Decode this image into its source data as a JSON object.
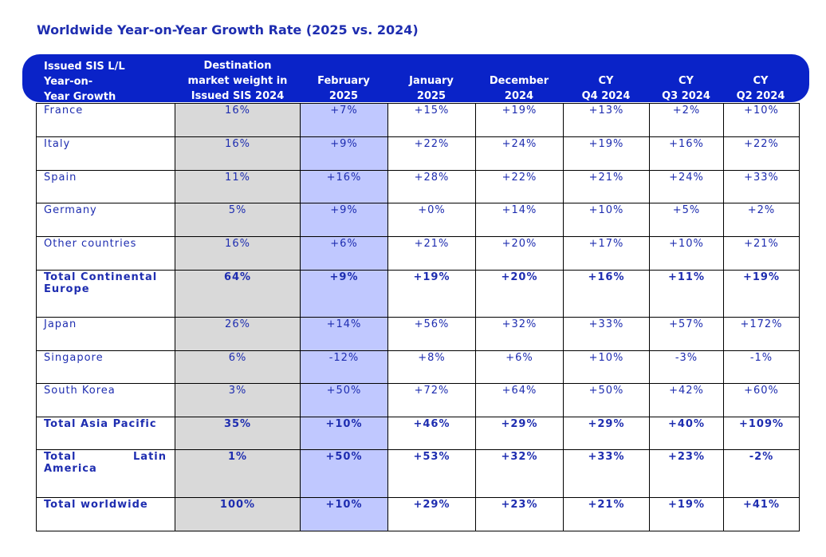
{
  "title": "Worldwide Year-on-Year Growth Rate (2025 vs. 2024)",
  "header": {
    "col0": [
      "Issued SIS L/L",
      "Year-on-",
      "Year Growth"
    ],
    "col1": [
      "Destination",
      "market weight in",
      "Issued SIS 2024"
    ],
    "col2": [
      "February",
      "2025"
    ],
    "col3": [
      "January",
      "2025"
    ],
    "col4": [
      "December",
      "2024"
    ],
    "col5": [
      "CY",
      "Q4 2024"
    ],
    "col6": [
      "CY",
      "Q3 2024"
    ],
    "col7": [
      "CY",
      "Q2 2024"
    ]
  },
  "colors": {
    "header_bg": "#0a23c8",
    "text": "#1e2db0",
    "weight_bg": "#d9d9d9",
    "feb_bg": "#c0c8ff"
  },
  "rows": [
    {
      "label": "France",
      "total": false,
      "values": [
        "16%",
        "+7%",
        "+15%",
        "+19%",
        "+13%",
        "+2%",
        "+10%"
      ]
    },
    {
      "label": "Italy",
      "total": false,
      "values": [
        "16%",
        "+9%",
        "+22%",
        "+24%",
        "+19%",
        "+16%",
        "+22%"
      ]
    },
    {
      "label": "Spain",
      "total": false,
      "values": [
        "11%",
        "+16%",
        "+28%",
        "+22%",
        "+21%",
        "+24%",
        "+33%"
      ]
    },
    {
      "label": "Germany",
      "total": false,
      "values": [
        "5%",
        "+9%",
        "+0%",
        "+14%",
        "+10%",
        "+5%",
        "+2%"
      ]
    },
    {
      "label": "Other countries",
      "total": false,
      "values": [
        "16%",
        "+6%",
        "+21%",
        "+20%",
        "+17%",
        "+10%",
        "+21%"
      ]
    },
    {
      "label": "Total Continental Europe",
      "total": true,
      "values": [
        "64%",
        "+9%",
        "+19%",
        "+20%",
        "+16%",
        "+11%",
        "+19%"
      ]
    },
    {
      "label": "Japan",
      "total": false,
      "values": [
        "26%",
        "+14%",
        "+56%",
        "+32%",
        "+33%",
        "+57%",
        "+172%"
      ]
    },
    {
      "label": "Singapore",
      "total": false,
      "values": [
        "6%",
        "-12%",
        "+8%",
        "+6%",
        "+10%",
        "-3%",
        "-1%"
      ]
    },
    {
      "label": "South Korea",
      "total": false,
      "values": [
        "3%",
        "+50%",
        "+72%",
        "+64%",
        "+50%",
        "+42%",
        "+60%"
      ]
    },
    {
      "label": "Total Asia Pacific",
      "total": true,
      "values": [
        "35%",
        "+10%",
        "+46%",
        "+29%",
        "+29%",
        "+40%",
        "+109%"
      ]
    },
    {
      "label": "Total Latin America",
      "total": true,
      "values": [
        "1%",
        "+50%",
        "+53%",
        "+32%",
        "+33%",
        "+23%",
        "-2%"
      ]
    },
    {
      "label": "Total worldwide",
      "total": true,
      "values": [
        "100%",
        "+10%",
        "+29%",
        "+23%",
        "+21%",
        "+19%",
        "+41%"
      ]
    }
  ]
}
